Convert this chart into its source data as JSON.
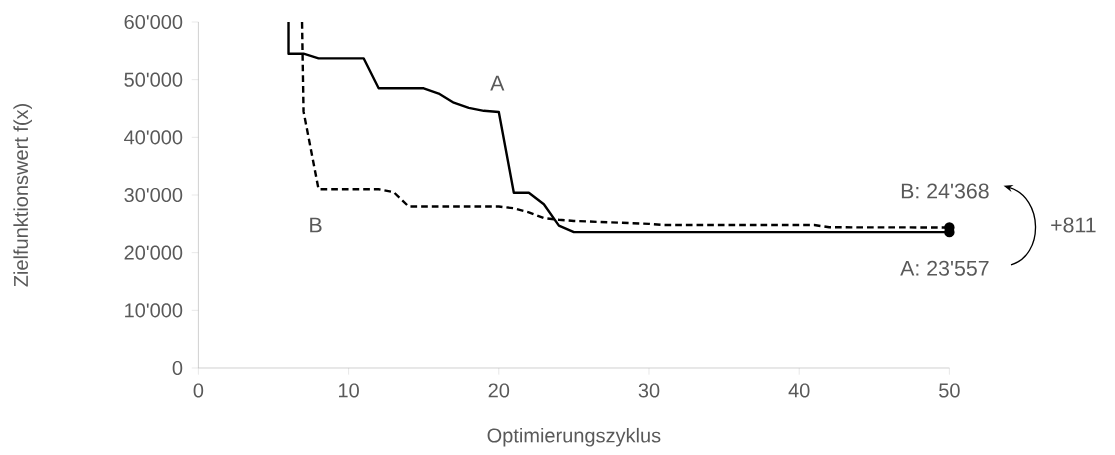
{
  "chart_data": {
    "type": "line",
    "xlabel": "Optimierungszyklus",
    "ylabel": "Zielfunktionswert f(x)",
    "xlim": [
      0,
      50
    ],
    "xticks": [
      0,
      10,
      20,
      30,
      40,
      50
    ],
    "ylim": [
      0,
      60000
    ],
    "yticks": [
      {
        "value": 0,
        "label": "0"
      },
      {
        "value": 10000,
        "label": "10'000"
      },
      {
        "value": 20000,
        "label": "20'000"
      },
      {
        "value": 30000,
        "label": "30'000"
      },
      {
        "value": 40000,
        "label": "40'000"
      },
      {
        "value": 50000,
        "label": "50'000"
      },
      {
        "value": 60000,
        "label": "60'000"
      }
    ],
    "grid": false,
    "series": [
      {
        "color": "#000000",
        "line_style": "solid",
        "x": [
          6,
          6,
          7,
          8,
          11,
          12,
          15,
          16,
          17,
          18,
          19,
          20,
          21,
          22,
          23,
          24,
          25,
          50
        ],
        "values": [
          60000,
          54500,
          54500,
          53700,
          53700,
          48500,
          48500,
          47600,
          46000,
          45100,
          44600,
          44400,
          30400,
          30400,
          28400,
          24700,
          23557,
          23557
        ]
      },
      {
        "color": "#000000",
        "line_style": "dashed",
        "x": [
          6.9,
          7,
          8,
          12,
          13,
          14,
          20,
          21,
          22,
          23,
          24,
          25,
          30,
          31,
          41,
          42,
          50
        ],
        "values": [
          60000,
          44500,
          31000,
          31000,
          30500,
          28000,
          28000,
          27700,
          27000,
          26000,
          25700,
          25500,
          25000,
          24800,
          24800,
          24400,
          24368
        ]
      }
    ],
    "annotations": [
      "A",
      "B",
      "B: 24'368",
      "A: 23'557",
      "+811"
    ]
  }
}
